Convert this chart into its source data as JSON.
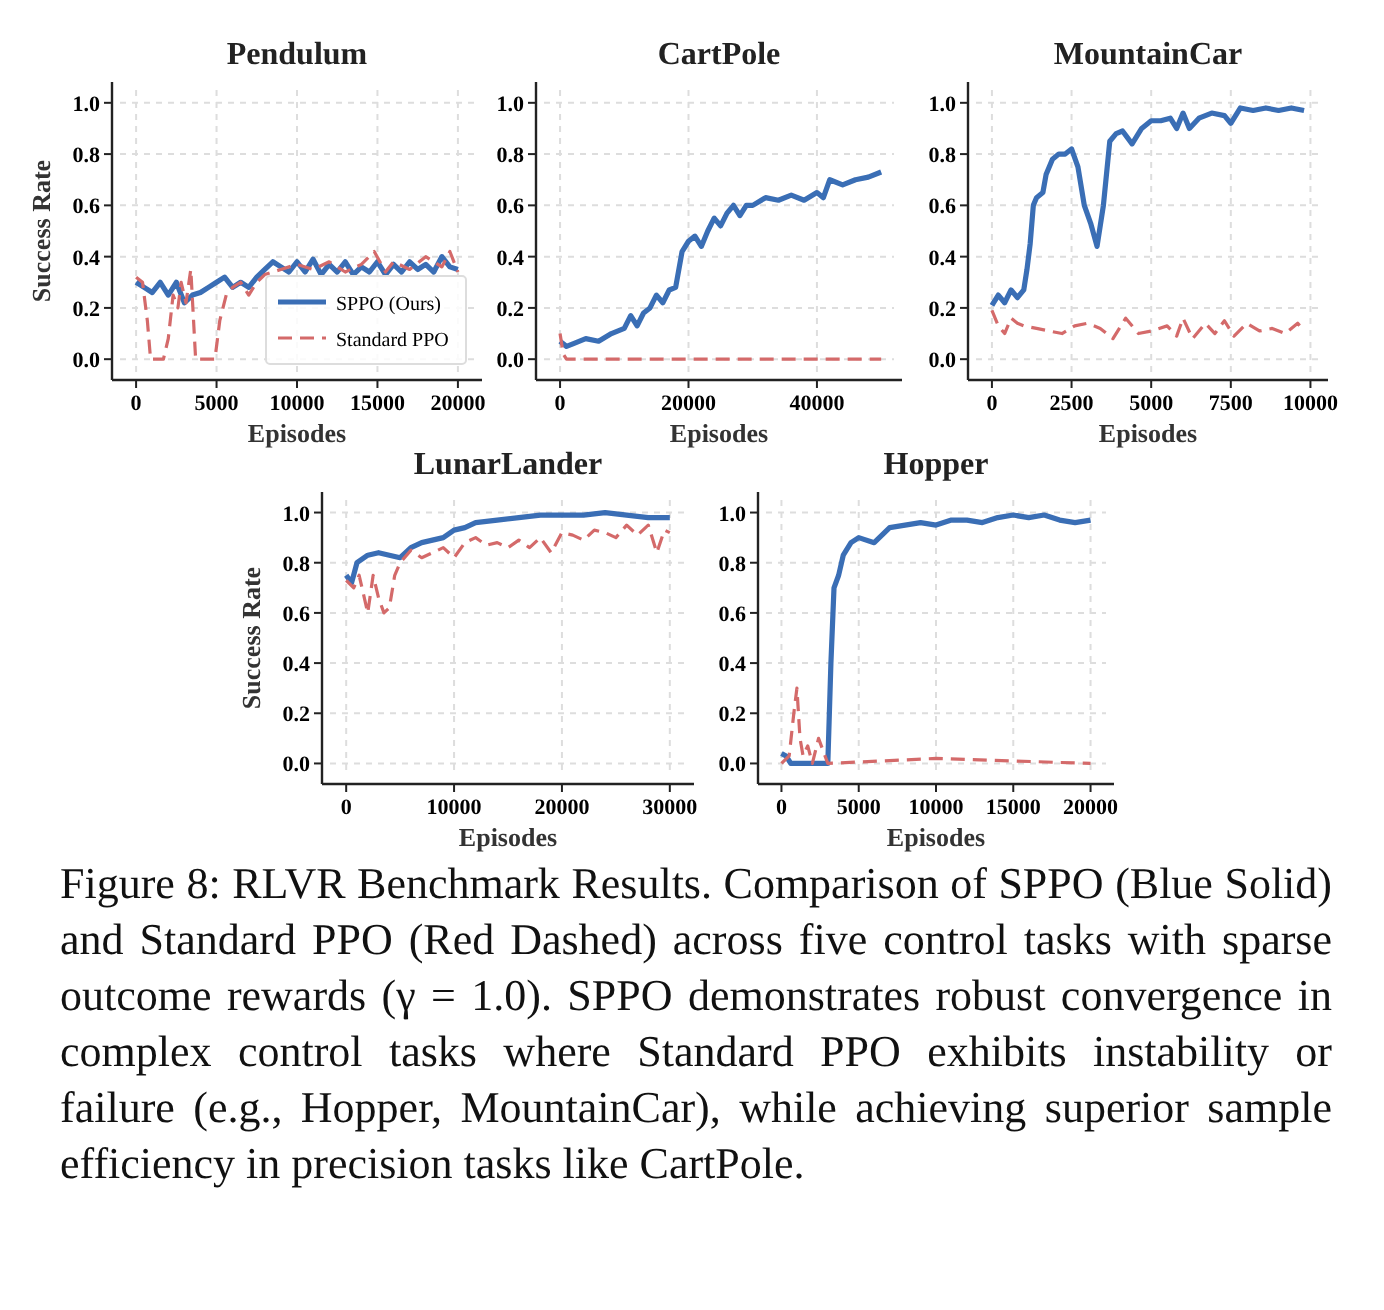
{
  "chart_data": [
    {
      "type": "line",
      "title": "Pendulum",
      "xlabel": "Episodes",
      "ylabel": "Success Rate",
      "xlim": [
        -1000,
        21000
      ],
      "ylim": [
        -0.05,
        1.05
      ],
      "xticks": [
        0,
        5000,
        10000,
        15000,
        20000
      ],
      "yticks": [
        {
          "value": 0,
          "label": "0.0"
        },
        {
          "value": 0.2,
          "label": "0.2"
        },
        {
          "value": 0.4,
          "label": "0.4"
        },
        {
          "value": 0.6,
          "label": "0.6"
        },
        {
          "value": 0.8,
          "label": "0.8"
        },
        {
          "value": 1,
          "label": "1.0"
        }
      ],
      "grid": true,
      "legend": "bottom right",
      "series": [
        {
          "name": "SPPO (Ours)",
          "color": "#3a6eb5",
          "line_style": "solid",
          "x": [
            0,
            500,
            1000,
            1500,
            2000,
            2500,
            3000,
            3500,
            4000,
            4500,
            5000,
            5500,
            6000,
            6500,
            7000,
            7500,
            8000,
            8500,
            9000,
            9500,
            10000,
            10500,
            11000,
            11500,
            12000,
            12500,
            13000,
            13500,
            14000,
            14500,
            15000,
            15500,
            16000,
            16500,
            17000,
            17500,
            18000,
            18500,
            19000,
            19500,
            20000
          ],
          "values": [
            0.3,
            0.28,
            0.26,
            0.3,
            0.25,
            0.3,
            0.22,
            0.25,
            0.26,
            0.28,
            0.3,
            0.32,
            0.28,
            0.3,
            0.28,
            0.32,
            0.35,
            0.38,
            0.36,
            0.34,
            0.38,
            0.34,
            0.39,
            0.33,
            0.37,
            0.34,
            0.38,
            0.33,
            0.36,
            0.34,
            0.38,
            0.33,
            0.37,
            0.34,
            0.38,
            0.35,
            0.37,
            0.34,
            0.4,
            0.36,
            0.35
          ]
        },
        {
          "name": "Standard PPO",
          "color": "#d46a6a",
          "line_style": "dashed",
          "x": [
            0,
            400,
            700,
            900,
            1700,
            2000,
            2300,
            2600,
            2800,
            3100,
            3400,
            3700,
            4900,
            5200,
            5600,
            6000,
            6500,
            7000,
            7500,
            8000,
            9000,
            10000,
            11000,
            12000,
            13000,
            14000,
            14800,
            15500,
            16000,
            17000,
            18000,
            19000,
            19500,
            20000
          ],
          "values": [
            0.32,
            0.3,
            0.15,
            0,
            0,
            0.08,
            0.25,
            0.2,
            0.3,
            0.22,
            0.35,
            0,
            0,
            0.15,
            0.25,
            0.28,
            0.3,
            0.25,
            0.3,
            0.33,
            0.35,
            0.37,
            0.35,
            0.38,
            0.34,
            0.37,
            0.42,
            0.34,
            0.38,
            0.35,
            0.4,
            0.36,
            0.42,
            0.34
          ]
        }
      ]
    },
    {
      "type": "line",
      "title": "CartPole",
      "xlabel": "Episodes",
      "xlim": [
        -2500,
        52000
      ],
      "ylim": [
        -0.05,
        1.05
      ],
      "xticks": [
        0,
        20000,
        40000
      ],
      "yticks": [
        {
          "value": 0,
          "label": "0.0"
        },
        {
          "value": 0.2,
          "label": "0.2"
        },
        {
          "value": 0.4,
          "label": "0.4"
        },
        {
          "value": 0.6,
          "label": "0.6"
        },
        {
          "value": 0.8,
          "label": "0.8"
        },
        {
          "value": 1,
          "label": "1.0"
        }
      ],
      "grid": true,
      "series": [
        {
          "color": "#3a6eb5",
          "line_style": "solid",
          "x": [
            0,
            1000,
            2000,
            4000,
            6000,
            8000,
            10000,
            11000,
            12000,
            13000,
            14000,
            15000,
            16000,
            17000,
            18000,
            19000,
            20000,
            21000,
            22000,
            23000,
            24000,
            25000,
            26000,
            27000,
            28000,
            29000,
            30000,
            32000,
            34000,
            36000,
            38000,
            40000,
            41000,
            42000,
            44000,
            46000,
            48000,
            50000
          ],
          "values": [
            0.07,
            0.05,
            0.06,
            0.08,
            0.07,
            0.1,
            0.12,
            0.17,
            0.13,
            0.18,
            0.2,
            0.25,
            0.22,
            0.27,
            0.28,
            0.42,
            0.46,
            0.48,
            0.44,
            0.5,
            0.55,
            0.52,
            0.57,
            0.6,
            0.56,
            0.6,
            0.6,
            0.63,
            0.62,
            0.64,
            0.62,
            0.65,
            0.63,
            0.7,
            0.68,
            0.7,
            0.71,
            0.73
          ]
        },
        {
          "color": "#d46a6a",
          "line_style": "dashed",
          "x": [
            0,
            500,
            1000,
            50000
          ],
          "values": [
            0.1,
            0.02,
            0,
            0
          ]
        }
      ]
    },
    {
      "type": "line",
      "title": "MountainCar",
      "xlabel": "Episodes",
      "xlim": [
        -500,
        10300
      ],
      "ylim": [
        -0.05,
        1.05
      ],
      "xticks": [
        0,
        2500,
        5000,
        7500,
        10000
      ],
      "yticks": [
        {
          "value": 0,
          "label": "0.0"
        },
        {
          "value": 0.2,
          "label": "0.2"
        },
        {
          "value": 0.4,
          "label": "0.4"
        },
        {
          "value": 0.6,
          "label": "0.6"
        },
        {
          "value": 0.8,
          "label": "0.8"
        },
        {
          "value": 1,
          "label": "1.0"
        }
      ],
      "grid": true,
      "series": [
        {
          "color": "#3a6eb5",
          "line_style": "solid",
          "x": [
            0,
            200,
            400,
            600,
            800,
            1000,
            1100,
            1200,
            1300,
            1400,
            1600,
            1700,
            1900,
            2100,
            2300,
            2500,
            2700,
            2900,
            3100,
            3300,
            3500,
            3700,
            3900,
            4100,
            4400,
            4700,
            5000,
            5300,
            5600,
            5800,
            6000,
            6200,
            6500,
            6900,
            7300,
            7500,
            7800,
            8200,
            8600,
            9000,
            9400,
            9800
          ],
          "values": [
            0.21,
            0.25,
            0.22,
            0.27,
            0.24,
            0.27,
            0.35,
            0.45,
            0.6,
            0.63,
            0.65,
            0.72,
            0.78,
            0.8,
            0.8,
            0.82,
            0.75,
            0.6,
            0.53,
            0.44,
            0.6,
            0.85,
            0.88,
            0.89,
            0.84,
            0.9,
            0.93,
            0.93,
            0.94,
            0.9,
            0.96,
            0.9,
            0.94,
            0.96,
            0.95,
            0.92,
            0.98,
            0.97,
            0.98,
            0.97,
            0.98,
            0.97
          ]
        },
        {
          "color": "#d46a6a",
          "line_style": "dashed",
          "x": [
            0,
            200,
            400,
            600,
            800,
            1000,
            1400,
            1800,
            2200,
            2600,
            3000,
            3400,
            3800,
            4200,
            4600,
            5000,
            5500,
            5800,
            6000,
            6300,
            6700,
            7000,
            7300,
            7600,
            8000,
            8400,
            8800,
            9200,
            9600,
            9800
          ],
          "values": [
            0.19,
            0.13,
            0.1,
            0.16,
            0.14,
            0.13,
            0.12,
            0.11,
            0.1,
            0.13,
            0.14,
            0.12,
            0.08,
            0.16,
            0.1,
            0.11,
            0.13,
            0.09,
            0.16,
            0.08,
            0.14,
            0.1,
            0.15,
            0.09,
            0.14,
            0.11,
            0.12,
            0.1,
            0.14,
            0.11
          ]
        }
      ]
    },
    {
      "type": "line",
      "title": "LunarLander",
      "xlabel": "Episodes",
      "ylabel": "Success Rate",
      "xlim": [
        -1500,
        31500
      ],
      "ylim": [
        -0.05,
        1.05
      ],
      "xticks": [
        0,
        10000,
        20000,
        30000
      ],
      "yticks": [
        {
          "value": 0,
          "label": "0.0"
        },
        {
          "value": 0.2,
          "label": "0.2"
        },
        {
          "value": 0.4,
          "label": "0.4"
        },
        {
          "value": 0.6,
          "label": "0.6"
        },
        {
          "value": 0.8,
          "label": "0.8"
        },
        {
          "value": 1,
          "label": "1.0"
        }
      ],
      "grid": true,
      "series": [
        {
          "color": "#3a6eb5",
          "line_style": "solid",
          "x": [
            0,
            500,
            1000,
            2000,
            3000,
            4000,
            5000,
            6000,
            7000,
            8000,
            9000,
            10000,
            11000,
            12000,
            14000,
            16000,
            18000,
            20000,
            22000,
            24000,
            26000,
            28000,
            30000
          ],
          "values": [
            0.75,
            0.72,
            0.8,
            0.83,
            0.84,
            0.83,
            0.82,
            0.86,
            0.88,
            0.89,
            0.9,
            0.93,
            0.94,
            0.96,
            0.97,
            0.98,
            0.99,
            0.99,
            0.99,
            1,
            0.99,
            0.98,
            0.98
          ]
        },
        {
          "color": "#d46a6a",
          "line_style": "dashed",
          "x": [
            0,
            700,
            1200,
            2000,
            2500,
            3000,
            3500,
            4000,
            4500,
            5000,
            6000,
            7000,
            8000,
            9000,
            10000,
            11000,
            12000,
            13000,
            14000,
            15000,
            16000,
            17000,
            18000,
            19000,
            20000,
            21000,
            22000,
            23000,
            24000,
            25000,
            26000,
            27000,
            28000,
            28800,
            29500,
            30000
          ],
          "values": [
            0.73,
            0.7,
            0.75,
            0.6,
            0.75,
            0.66,
            0.6,
            0.62,
            0.75,
            0.8,
            0.85,
            0.82,
            0.84,
            0.86,
            0.82,
            0.88,
            0.9,
            0.87,
            0.88,
            0.86,
            0.89,
            0.86,
            0.9,
            0.84,
            0.92,
            0.91,
            0.89,
            0.93,
            0.92,
            0.9,
            0.95,
            0.91,
            0.95,
            0.84,
            0.93,
            0.92
          ]
        }
      ]
    },
    {
      "type": "line",
      "title": "Hopper",
      "xlabel": "Episodes",
      "xlim": [
        -1000,
        21000
      ],
      "ylim": [
        -0.05,
        1.05
      ],
      "xticks": [
        0,
        5000,
        10000,
        15000,
        20000
      ],
      "yticks": [
        {
          "value": 0,
          "label": "0.0"
        },
        {
          "value": 0.2,
          "label": "0.2"
        },
        {
          "value": 0.4,
          "label": "0.4"
        },
        {
          "value": 0.6,
          "label": "0.6"
        },
        {
          "value": 0.8,
          "label": "0.8"
        },
        {
          "value": 1,
          "label": "1.0"
        }
      ],
      "grid": true,
      "series": [
        {
          "color": "#3a6eb5",
          "line_style": "solid",
          "x": [
            0,
            300,
            600,
            3000,
            3200,
            3400,
            3700,
            4000,
            4500,
            5000,
            6000,
            7000,
            8000,
            9000,
            10000,
            11000,
            12000,
            13000,
            14000,
            15000,
            16000,
            17000,
            18000,
            19000,
            20000
          ],
          "values": [
            0.04,
            0.03,
            0,
            0,
            0.4,
            0.7,
            0.75,
            0.83,
            0.88,
            0.9,
            0.88,
            0.94,
            0.95,
            0.96,
            0.95,
            0.97,
            0.97,
            0.96,
            0.98,
            0.99,
            0.98,
            0.99,
            0.97,
            0.96,
            0.97
          ]
        },
        {
          "color": "#d46a6a",
          "line_style": "dashed",
          "x": [
            0,
            500,
            800,
            1000,
            1200,
            1400,
            1700,
            2000,
            2400,
            2700,
            3000,
            10000,
            20000
          ],
          "values": [
            0,
            0.03,
            0.2,
            0.3,
            0.1,
            0.03,
            0.07,
            0,
            0.1,
            0.05,
            0,
            0.02,
            0
          ]
        }
      ]
    },
    {
      "type": "other",
      "annotations": [
        "Figure 8: RLVR Benchmark Results. Comparison of SPPO (Blue Solid) and Standard PPO (Red Dashed) across five control tasks with sparse outcome rewards (γ = 1.0). SPPO demonstrates robust convergence in complex control tasks where Standard PPO exhibits instability or failure (e.g., Hopper, MountainCar), while achieving superior sample efficiency in precision tasks like CartPole."
      ]
    }
  ]
}
